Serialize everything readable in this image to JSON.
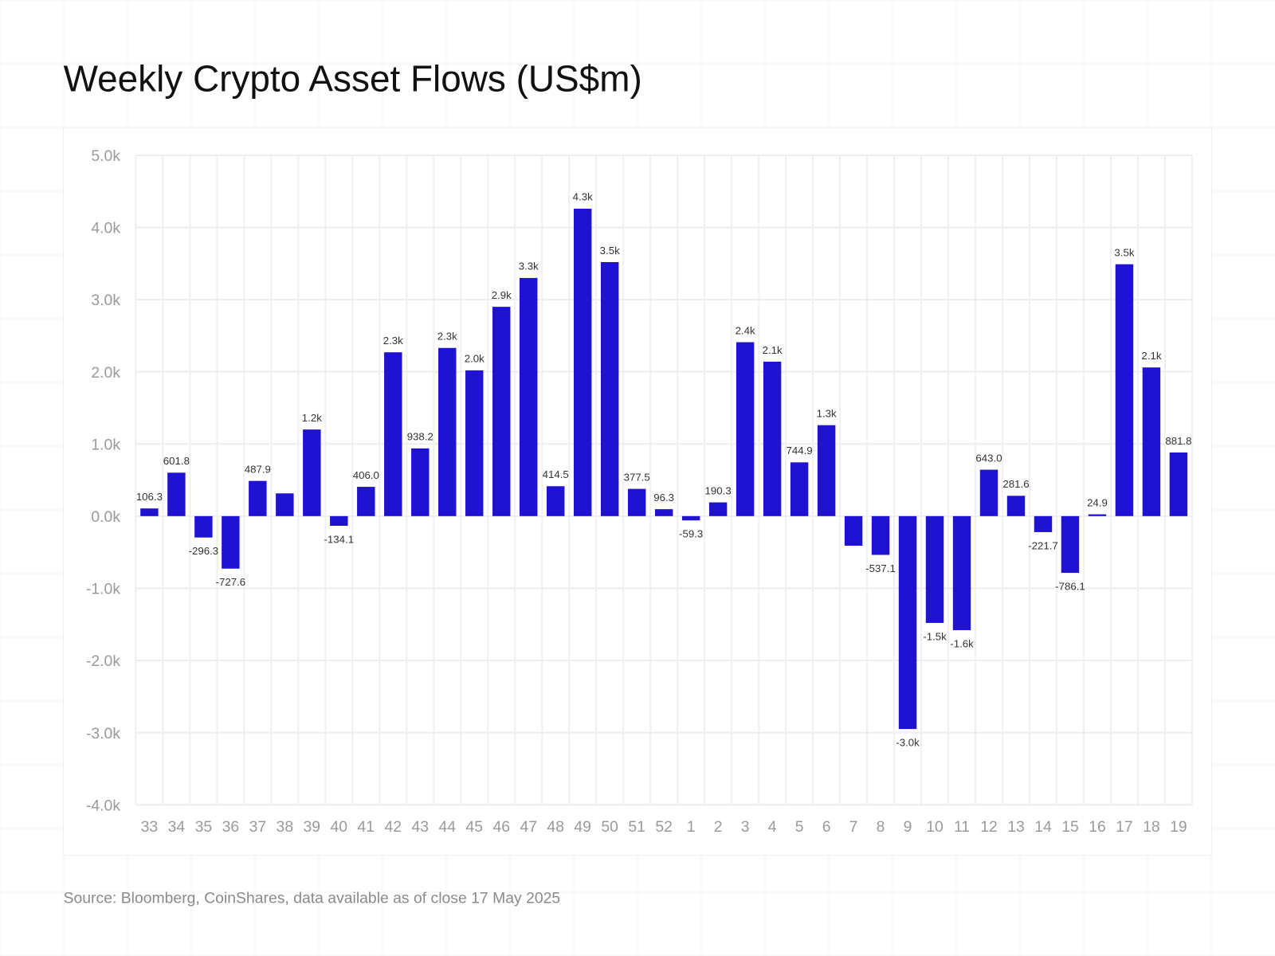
{
  "chart_data": {
    "type": "bar",
    "title": "Weekly Crypto Asset Flows (US$m)",
    "source": "Source: Bloomberg, CoinShares, data available as of close 17 May 2025",
    "xlabel": "",
    "ylabel": "",
    "ylim": [
      -4000,
      5000
    ],
    "yticks": [
      5000,
      4000,
      3000,
      2000,
      1000,
      0,
      -1000,
      -2000,
      -3000,
      -4000
    ],
    "ytick_labels": [
      "5.0k",
      "4.0k",
      "3.0k",
      "2.0k",
      "1.0k",
      "0.0k",
      "-1.0k",
      "-2.0k",
      "-3.0k",
      "-4.0k"
    ],
    "grid": true,
    "bar_color": "#1f12d0",
    "categories": [
      "33",
      "34",
      "35",
      "36",
      "37",
      "38",
      "39",
      "40",
      "41",
      "42",
      "43",
      "44",
      "45",
      "46",
      "47",
      "48",
      "49",
      "50",
      "51",
      "52",
      "1",
      "2",
      "3",
      "4",
      "5",
      "6",
      "7",
      "8",
      "9",
      "10",
      "11",
      "12",
      "13",
      "14",
      "15",
      "16",
      "17",
      "18",
      "19"
    ],
    "values": [
      106.3,
      601.8,
      -296.3,
      -727.6,
      487.9,
      315,
      1200,
      -134.1,
      406.0,
      2270,
      938.2,
      2330,
      2020,
      2900,
      3300,
      414.5,
      4260,
      3520,
      377.5,
      96.3,
      -59.3,
      190.3,
      2410,
      2140,
      744.9,
      1260,
      -410,
      -537.1,
      -2950,
      -1480,
      -1580,
      643.0,
      281.6,
      -221.7,
      -786.1,
      24.9,
      3490,
      2060,
      881.8
    ],
    "data_labels": [
      "106.3",
      "601.8",
      "-296.3",
      "-727.6",
      "487.9",
      "",
      "1.2k",
      "-134.1",
      "406.0",
      "2.3k",
      "938.2",
      "2.3k",
      "2.0k",
      "2.9k",
      "3.3k",
      "414.5",
      "4.3k",
      "3.5k",
      "377.5",
      "96.3",
      "-59.3",
      "190.3",
      "2.4k",
      "2.1k",
      "744.9",
      "1.3k",
      "",
      "-537.1",
      "-3.0k",
      "-1.5k",
      "-1.6k",
      "643.0",
      "281.6",
      "-221.7",
      "-786.1",
      "24.9",
      "3.5k",
      "2.1k",
      "881.8"
    ]
  }
}
